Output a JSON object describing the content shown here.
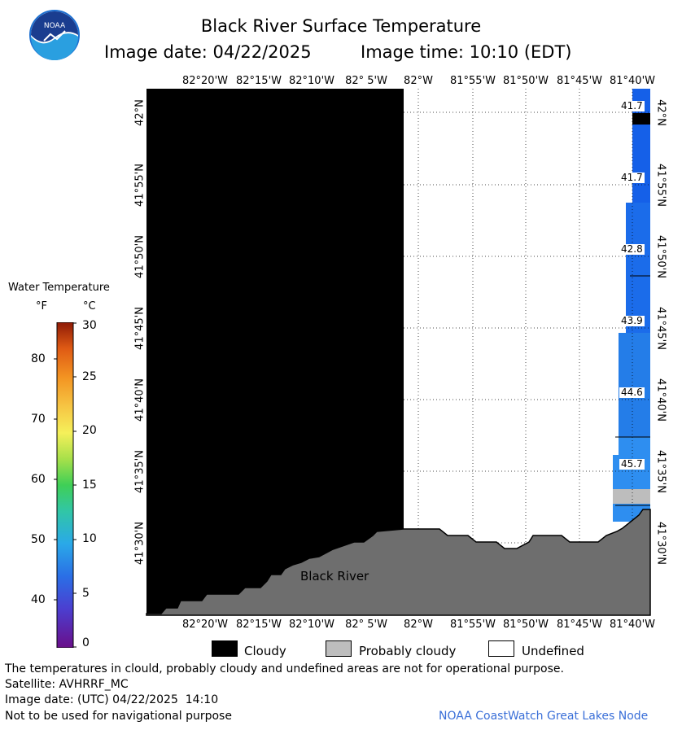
{
  "header": {
    "title": "Black River Surface Temperature",
    "image_date_label": "Image date: 04/22/2025",
    "image_time_label": "Image time: 10:10 (EDT)"
  },
  "map": {
    "longitude_labels": [
      "82°20'W",
      "82°15'W",
      "82°10'W",
      "82° 5'W",
      "82°W",
      "81°55'W",
      "81°50'W",
      "81°45'W",
      "81°40'W"
    ],
    "latitude_labels": [
      "42°N",
      "41°55'N",
      "41°50'N",
      "41°45'N",
      "41°40'N",
      "41°35'N",
      "41°30'N"
    ],
    "place_label": "Black River",
    "temperature_labels": [
      "41.7",
      "41.7",
      "42.8",
      "43.9",
      "44.6",
      "45.7"
    ]
  },
  "colorbar": {
    "title": "Water Temperature",
    "unit_f": "°F",
    "unit_c": "°C",
    "fahrenheit_ticks": [
      "80",
      "70",
      "60",
      "50",
      "40"
    ],
    "celsius_ticks": [
      "30",
      "25",
      "20",
      "15",
      "10",
      "5",
      "0"
    ]
  },
  "legend": {
    "cloudy": "Cloudy",
    "probably_cloudy": "Probably cloudy",
    "undefined": "Undefined"
  },
  "footer": {
    "disclaimer": "The temperatures in clould, probably cloudy and undefined areas are not for operational purpose.",
    "satellite": "Satellite: AVHRRF_MC",
    "utc_date": "Image date: (UTC) 04/22/2025  14:10",
    "nav_warning": "Not to be used for navigational purpose",
    "credit": "NOAA CoastWatch Great Lakes Node"
  },
  "colors": {
    "cloud": "#000000",
    "land": "#6e6e6e",
    "probably_cloudy": "#bdbdbd",
    "water_cold": "#1560e8",
    "water_warm": "#2e8ef0"
  }
}
